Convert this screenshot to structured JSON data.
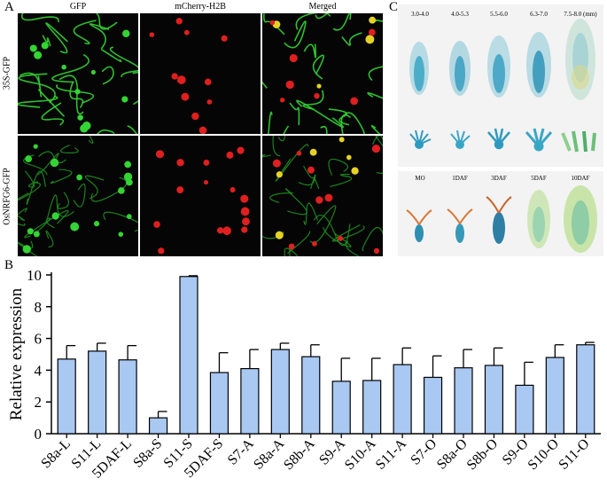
{
  "panel_a": {
    "letter": "A",
    "columns": [
      "GFP",
      "mCherry-H2B",
      "Merged"
    ],
    "rows": [
      "35S-GFP",
      "OsNRFG6-GFP"
    ]
  },
  "panel_c": {
    "letter": "C",
    "top_labels": [
      "3.0-4.0",
      "4.0-5.3",
      "5.5-6.0",
      "6.3-7.0",
      "7.5-8.0 (mm)"
    ],
    "bottom_labels": [
      "MO",
      "1DAF",
      "3DAF",
      "5DAF",
      "10DAF"
    ]
  },
  "panel_b": {
    "letter": "B"
  },
  "colors": {
    "bar_fill": "#a9c8f2",
    "bar_stroke": "#000000",
    "gfp_green": "#33d433",
    "mcherry_red": "#e01f1f",
    "gus_blue": "#3a9ec0"
  },
  "chart_data": {
    "type": "bar",
    "ylabel": "Relative expression",
    "xlabel": "",
    "ylim": [
      0,
      10
    ],
    "yticks": [
      0,
      2,
      4,
      6,
      8,
      10
    ],
    "categories": [
      "S8a-L",
      "S11-L",
      "5DAF-L",
      "S8a-S",
      "S11-S",
      "5DAF-S",
      "S7-A",
      "S8a-A",
      "S8b-A",
      "S9-A",
      "S10-A",
      "S11-A",
      "S7-O",
      "S8a-O",
      "S8b-O",
      "S9-O",
      "S10-O",
      "S11-O"
    ],
    "values": [
      4.7,
      5.2,
      4.65,
      1.0,
      9.9,
      3.85,
      4.1,
      5.3,
      4.85,
      3.3,
      3.35,
      4.35,
      3.55,
      4.15,
      4.3,
      3.05,
      4.8,
      5.6
    ],
    "errors": [
      0.85,
      0.5,
      0.9,
      0.4,
      0.05,
      1.25,
      1.2,
      0.4,
      0.75,
      1.45,
      1.4,
      1.05,
      1.35,
      1.15,
      1.1,
      1.45,
      0.8,
      0.15
    ],
    "grid": false,
    "legend": "none"
  }
}
